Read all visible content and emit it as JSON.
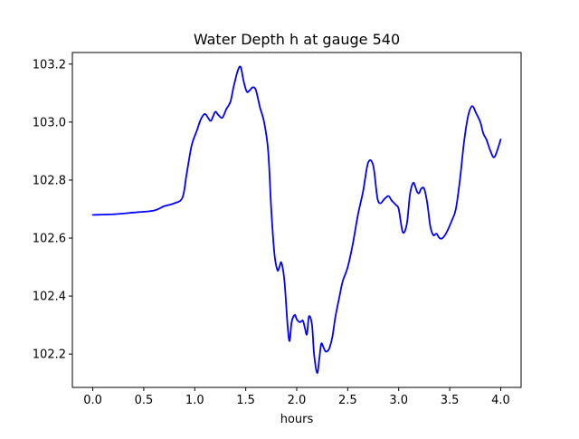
{
  "chart_data": {
    "type": "line",
    "title": "Water Depth h at gauge 540",
    "xlabel": "hours",
    "ylabel": "",
    "xlim": [
      -0.2,
      4.2
    ],
    "ylim": [
      102.085,
      103.24
    ],
    "x_ticks": [
      0.0,
      0.5,
      1.0,
      1.5,
      2.0,
      2.5,
      3.0,
      3.5,
      4.0
    ],
    "x_tick_labels": [
      "0.0",
      "0.5",
      "1.0",
      "1.5",
      "2.0",
      "2.5",
      "3.0",
      "3.5",
      "4.0"
    ],
    "y_ticks": [
      102.2,
      102.4,
      102.6,
      102.8,
      103.0,
      103.2
    ],
    "y_tick_labels": [
      "102.2",
      "102.4",
      "102.6",
      "102.8",
      "103.0",
      "103.2"
    ],
    "grid": false,
    "series": [
      {
        "color": "#0000ff",
        "x": [
          0.0,
          0.2,
          0.4,
          0.6,
          0.7,
          0.8,
          0.88,
          0.92,
          0.97,
          1.02,
          1.06,
          1.1,
          1.13,
          1.16,
          1.2,
          1.23,
          1.27,
          1.31,
          1.35,
          1.38,
          1.42,
          1.45,
          1.48,
          1.51,
          1.54,
          1.57,
          1.6,
          1.64,
          1.68,
          1.72,
          1.75,
          1.78,
          1.81,
          1.83,
          1.85,
          1.88,
          1.91,
          1.93,
          1.95,
          1.98,
          2.0,
          2.03,
          2.06,
          2.08,
          2.1,
          2.12,
          2.15,
          2.17,
          2.2,
          2.22,
          2.24,
          2.26,
          2.28,
          2.3,
          2.32,
          2.35,
          2.38,
          2.42,
          2.45,
          2.5,
          2.55,
          2.6,
          2.65,
          2.7,
          2.75,
          2.79,
          2.82,
          2.86,
          2.9,
          2.93,
          2.97,
          3.0,
          3.04,
          3.08,
          3.11,
          3.14,
          3.16,
          3.18,
          3.2,
          3.22,
          3.25,
          3.28,
          3.31,
          3.34,
          3.37,
          3.4,
          3.43,
          3.47,
          3.52,
          3.56,
          3.6,
          3.64,
          3.68,
          3.72,
          3.76,
          3.8,
          3.83,
          3.86,
          3.9,
          3.94,
          4.0
        ],
        "y": [
          102.68,
          102.682,
          102.688,
          102.695,
          102.71,
          102.72,
          102.74,
          102.82,
          102.92,
          102.97,
          103.01,
          103.028,
          103.015,
          103.005,
          103.035,
          103.025,
          103.015,
          103.045,
          103.07,
          103.12,
          103.175,
          103.19,
          103.14,
          103.105,
          103.11,
          103.12,
          103.11,
          103.05,
          103.0,
          102.9,
          102.7,
          102.55,
          102.49,
          102.5,
          102.515,
          102.45,
          102.3,
          102.245,
          102.31,
          102.335,
          102.32,
          102.31,
          102.315,
          102.29,
          102.268,
          102.33,
          102.3,
          102.2,
          102.135,
          102.18,
          102.235,
          102.225,
          102.21,
          102.21,
          102.22,
          102.26,
          102.33,
          102.4,
          102.45,
          102.5,
          102.58,
          102.68,
          102.76,
          102.86,
          102.85,
          102.74,
          102.72,
          102.735,
          102.745,
          102.73,
          102.715,
          102.7,
          102.62,
          102.65,
          102.75,
          102.79,
          102.78,
          102.76,
          102.755,
          102.77,
          102.77,
          102.72,
          102.64,
          102.61,
          102.615,
          102.6,
          102.6,
          102.62,
          102.66,
          102.7,
          102.8,
          102.93,
          103.02,
          103.055,
          103.03,
          103.0,
          102.96,
          102.94,
          102.9,
          102.88,
          102.94
        ]
      }
    ]
  }
}
